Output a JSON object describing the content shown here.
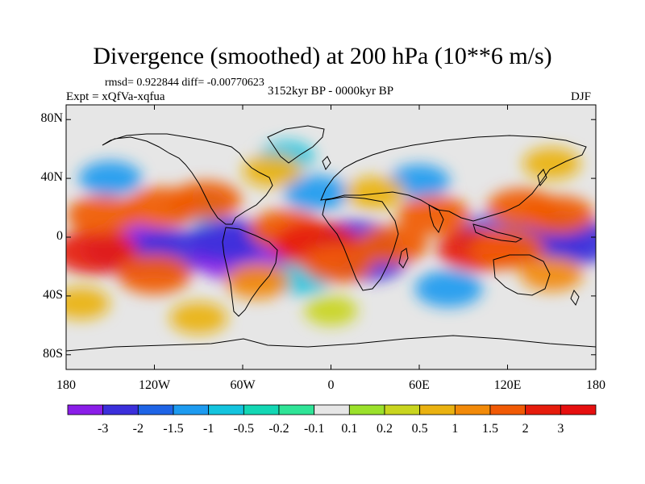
{
  "title": "Divergence (smoothed) at 200 hPa (10**6 m/s)",
  "stats": "rmsd= 0.922844 diff= -0.00770623",
  "period": "3152kyr BP - 0000kyr BP",
  "experiment": "Expt = xQfVa-xqfua",
  "season": "DJF",
  "chart_data": {
    "type": "heatmap",
    "projection": "equirectangular",
    "variable": "Divergence (smoothed) at 200 hPa",
    "units": "10**6 m/s",
    "x_ticks": [
      "180",
      "120W",
      "60W",
      "0",
      "60E",
      "120E",
      "180"
    ],
    "x_tick_values": [
      -180,
      -120,
      -60,
      0,
      60,
      120,
      180
    ],
    "y_ticks": [
      "80N",
      "40N",
      "0",
      "40S",
      "80S"
    ],
    "y_tick_values": [
      80,
      40,
      0,
      -40,
      -80
    ],
    "lon_range": [
      -180,
      180
    ],
    "lat_range": [
      -90,
      90
    ],
    "levels": [
      "-3",
      "-2",
      "-1.5",
      "-1",
      "-0.5",
      "-0.2",
      "-0.1",
      "0.1",
      "0.2",
      "0.5",
      "1",
      "1.5",
      "2",
      "3"
    ],
    "colors": [
      "#8a1de8",
      "#3b2fdb",
      "#1e64e6",
      "#1d9bf0",
      "#14c4de",
      "#13d7b4",
      "#2fe497",
      "#e6e6e6",
      "#9be12b",
      "#c9d51f",
      "#eab211",
      "#f28a09",
      "#f15a05",
      "#e61c0c",
      "#e60f0f"
    ],
    "anomalies": [
      {
        "lon": -135,
        "lat": -8,
        "value": -3.2
      },
      {
        "lon": -108,
        "lat": -10,
        "value": -2.4
      },
      {
        "lon": -60,
        "lat": -12,
        "value": -3.5
      },
      {
        "lon": -70,
        "lat": -2,
        "value": -2.2
      },
      {
        "lon": 15,
        "lat": -5,
        "value": -2.8
      },
      {
        "lon": 25,
        "lat": -15,
        "value": -2.2
      },
      {
        "lon": 145,
        "lat": 0,
        "value": -2.8
      },
      {
        "lon": 165,
        "lat": -3,
        "value": -2.6
      },
      {
        "lon": 110,
        "lat": 2,
        "value": -1.6
      },
      {
        "lon": 80,
        "lat": -35,
        "value": -1.4
      },
      {
        "lon": -10,
        "lat": 30,
        "value": -1.2
      },
      {
        "lon": -150,
        "lat": 40,
        "value": -1.1
      },
      {
        "lon": -20,
        "lat": -28,
        "value": -0.9
      },
      {
        "lon": 60,
        "lat": 38,
        "value": -1.0
      },
      {
        "lon": -90,
        "lat": 20,
        "value": -0.8
      },
      {
        "lon": -30,
        "lat": 55,
        "value": -0.6
      },
      {
        "lon": -160,
        "lat": -10,
        "value": 2.4
      },
      {
        "lon": -120,
        "lat": -25,
        "value": 1.8
      },
      {
        "lon": -155,
        "lat": 15,
        "value": 1.7
      },
      {
        "lon": -115,
        "lat": 20,
        "value": 1.9
      },
      {
        "lon": -85,
        "lat": 25,
        "value": 1.6
      },
      {
        "lon": -30,
        "lat": 5,
        "value": 1.9
      },
      {
        "lon": -10,
        "lat": -5,
        "value": 2.6
      },
      {
        "lon": 5,
        "lat": -18,
        "value": 1.6
      },
      {
        "lon": 42,
        "lat": -5,
        "value": 1.6
      },
      {
        "lon": 70,
        "lat": 15,
        "value": 1.7
      },
      {
        "lon": 100,
        "lat": -8,
        "value": 2.3
      },
      {
        "lon": 120,
        "lat": -8,
        "value": 1.8
      },
      {
        "lon": 130,
        "lat": 20,
        "value": 1.6
      },
      {
        "lon": 155,
        "lat": 15,
        "value": 1.6
      },
      {
        "lon": 150,
        "lat": -25,
        "value": 1.1
      },
      {
        "lon": -50,
        "lat": -30,
        "value": 1.2
      },
      {
        "lon": -40,
        "lat": 45,
        "value": 0.9
      },
      {
        "lon": -170,
        "lat": -45,
        "value": 0.8
      },
      {
        "lon": -90,
        "lat": -55,
        "value": 0.8
      },
      {
        "lon": 30,
        "lat": 30,
        "value": 0.9
      },
      {
        "lon": 150,
        "lat": 50,
        "value": 0.8
      },
      {
        "lon": 0,
        "lat": -50,
        "value": 0.5
      }
    ]
  }
}
